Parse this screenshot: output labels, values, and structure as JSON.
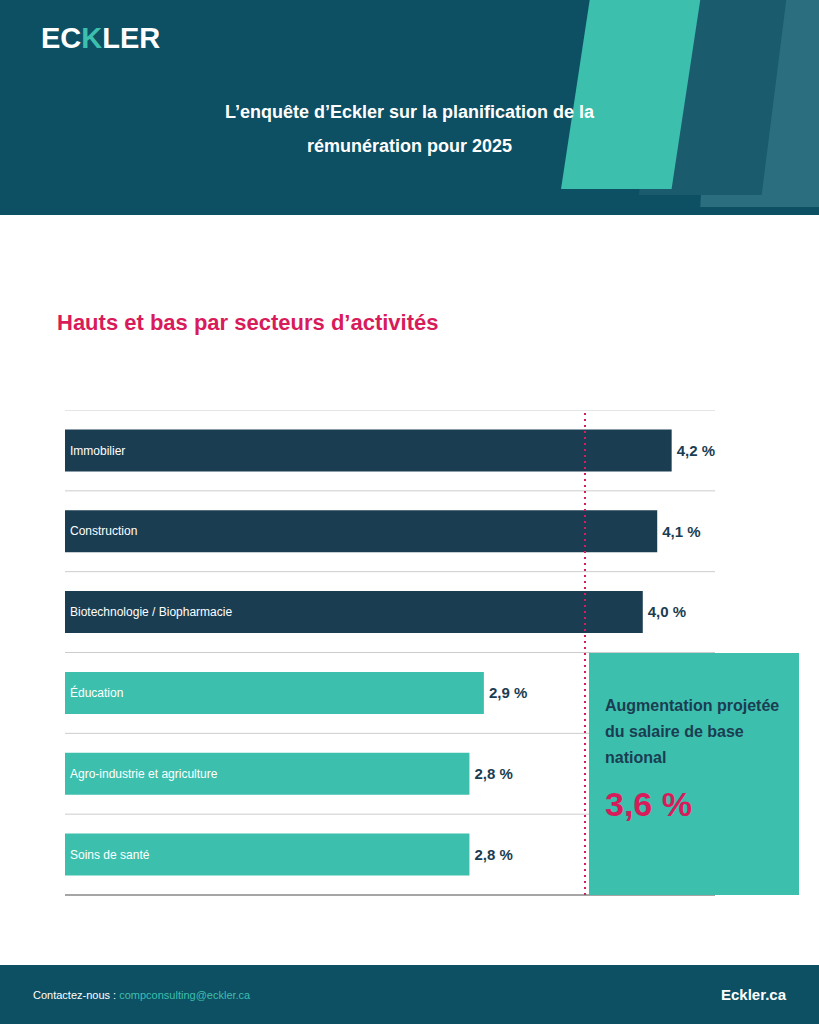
{
  "chart_data": {
    "type": "bar",
    "orientation": "horizontal",
    "title": "L’enquête d’Eckler sur la planification de la rémunération pour 2025",
    "subtitle": "Hauts et bas par secteurs d’activités",
    "categories": [
      "Immobilier",
      "Construction",
      "Biotechnologie / Biopharmacie",
      "Éducation",
      "Agro-industrie et agriculture",
      "Soins de santé"
    ],
    "values": [
      4.2,
      4.1,
      4.0,
      2.9,
      2.8,
      2.8
    ],
    "value_labels": [
      "4,2 %",
      "4,1 %",
      "4,0 %",
      "2,9 %",
      "2,8 %",
      "2,8 %"
    ],
    "colors": [
      "#1a3d52",
      "#1a3d52",
      "#1a3d52",
      "#3dbfad",
      "#3dbfad",
      "#3dbfad"
    ],
    "data_labels": true,
    "xlim": [
      0,
      4.5
    ],
    "tick_labels": false,
    "grid": true,
    "reference_line": {
      "value": 3.6,
      "label": "3,6 %",
      "color": "#d81b5a",
      "text": [
        "Augmentation projetée",
        "du salaire de base",
        "national"
      ]
    },
    "annotations": [
      {
        "text": "EC",
        "color": "#ffffff"
      },
      {
        "text": "K",
        "color": "#3dbfad"
      },
      {
        "text": "LER",
        "color": "#ffffff"
      },
      {
        "text": "Contactez-nous : ",
        "color": "#ffffff"
      },
      {
        "text": "compconsulting@eckler.ca",
        "color": "#3dbfad"
      },
      {
        "text": "Eckler.ca",
        "color": "#ffffff"
      }
    ]
  }
}
